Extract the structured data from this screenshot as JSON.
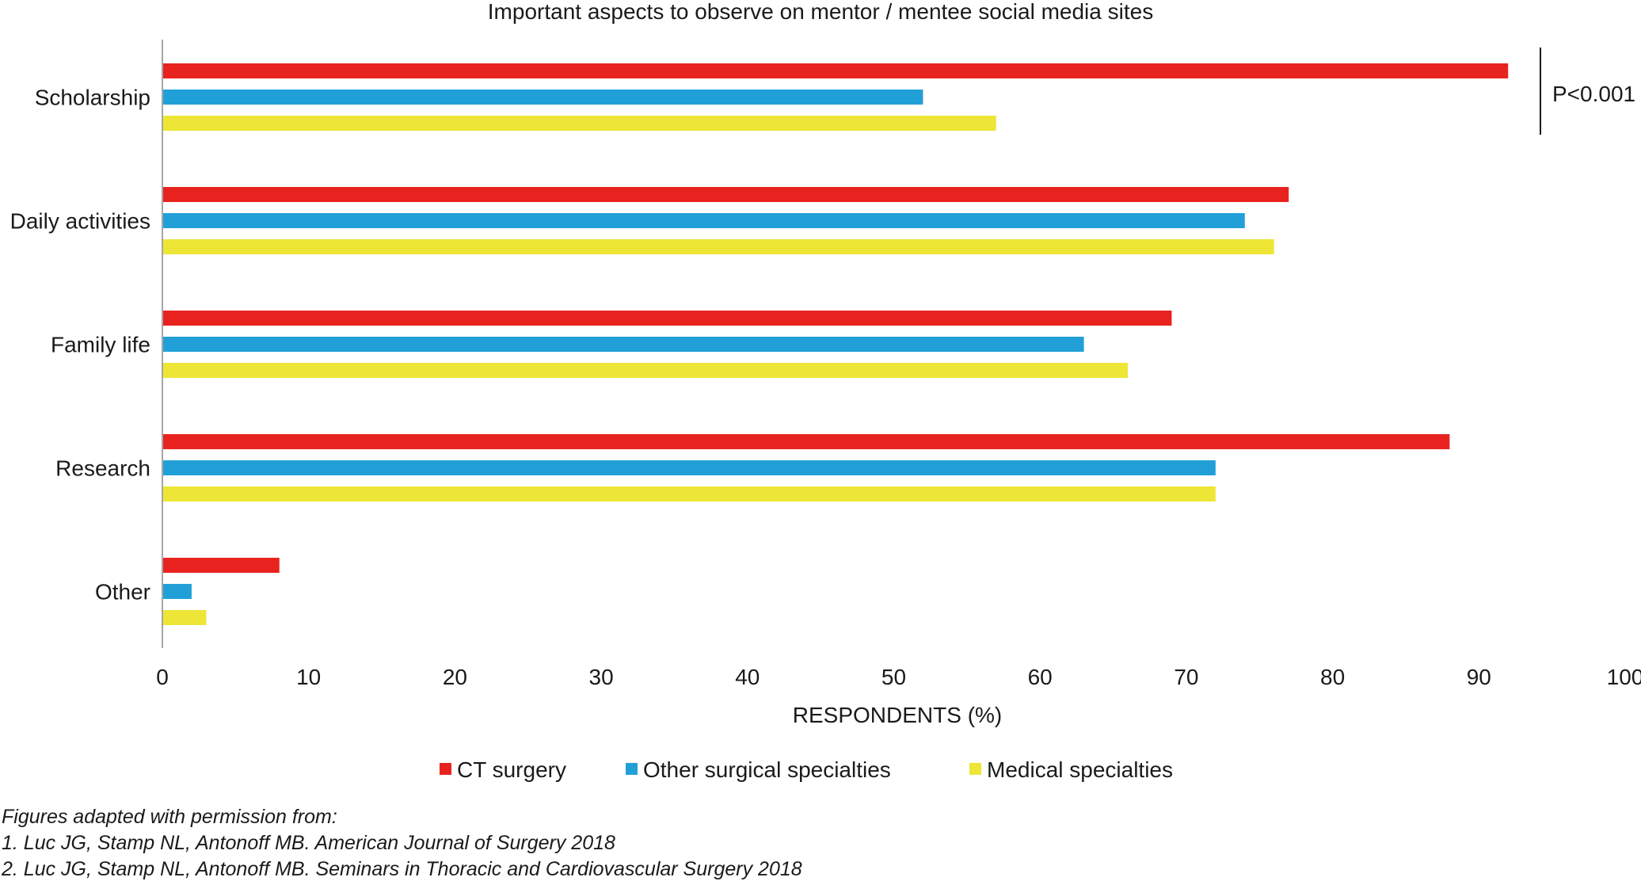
{
  "chart_data": {
    "type": "bar",
    "orientation": "horizontal",
    "title": "Important aspects to observe on mentor / mentee social media sites",
    "xlabel": "RESPONDENTS (%)",
    "ylabel": "",
    "xlim": [
      0,
      100
    ],
    "xticks": [
      "0",
      "10",
      "20",
      "30",
      "40",
      "50",
      "60",
      "70",
      "80",
      "90",
      "100"
    ],
    "categories": [
      "Scholarship",
      "Daily activities",
      "Family life",
      "Research",
      "Other"
    ],
    "series": [
      {
        "name": "CT surgery",
        "color": "#e8231f",
        "values": [
          92,
          77,
          69,
          88,
          8
        ]
      },
      {
        "name": "Other surgical specialties",
        "color": "#21a0d8",
        "values": [
          52,
          74,
          63,
          72,
          2
        ]
      },
      {
        "name": "Medical specialties",
        "color": "#ede637",
        "values": [
          57,
          76,
          66,
          72,
          3
        ]
      }
    ],
    "annotation": {
      "text": "P<0.001",
      "category": "Scholarship"
    },
    "grid": false,
    "legend_position": "bottom"
  },
  "citation": {
    "lines": [
      "Figures adapted with permission from:",
      "1. Luc JG, Stamp NL, Antonoff MB. American Journal of Surgery 2018",
      "2. Luc JG, Stamp NL, Antonoff MB. Seminars in Thoracic and Cardiovascular Surgery 2018"
    ]
  }
}
